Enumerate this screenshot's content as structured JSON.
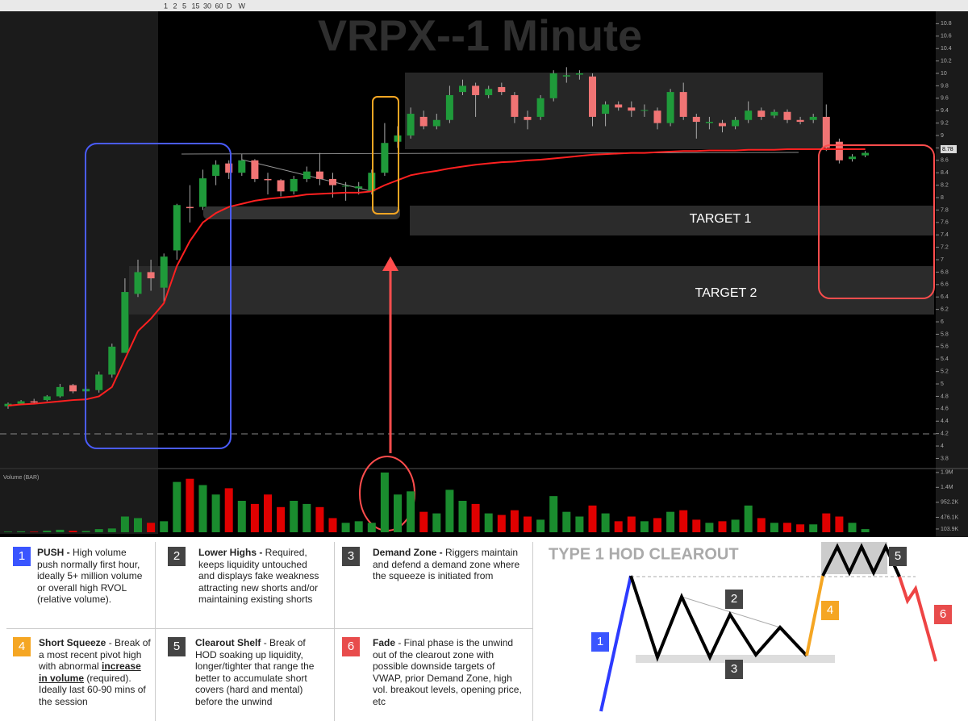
{
  "toolbar": {
    "labels": [
      "1",
      "2",
      "5",
      "15",
      "30",
      "60",
      "D",
      "W"
    ]
  },
  "chart_data": {
    "type": "candlestick",
    "title": "VRPX--1 Minute",
    "categories": [
      null,
      null,
      null,
      null,
      null,
      null,
      null,
      null,
      null,
      null,
      null,
      null,
      null,
      null,
      null,
      null,
      null,
      null,
      null,
      null,
      null,
      null,
      null,
      null,
      null,
      null,
      null,
      null,
      null,
      null,
      null,
      null,
      null,
      null,
      null,
      null,
      null,
      null,
      null,
      null,
      null,
      null,
      null,
      null,
      null,
      null,
      null,
      null,
      null,
      null,
      null,
      null,
      null,
      null,
      null,
      null,
      null,
      null,
      null,
      null,
      null,
      null,
      null,
      null,
      null,
      null,
      null
    ],
    "open": [
      4.64,
      4.68,
      4.72,
      4.74,
      4.8,
      4.98,
      4.88,
      4.9,
      5.15,
      5.5,
      6.45,
      6.8,
      6.55,
      7.15,
      7.85,
      7.85,
      8.35,
      8.55,
      8.4,
      8.6,
      8.3,
      8.28,
      8.1,
      8.3,
      8.42,
      8.3,
      8.18,
      8.15,
      8.1,
      8.4,
      8.9,
      9.0,
      9.3,
      9.15,
      9.25,
      9.7,
      9.8,
      9.65,
      9.78,
      9.65,
      9.3,
      9.3,
      9.6,
      9.95,
      9.98,
      9.95,
      9.35,
      9.5,
      9.45,
      9.4,
      9.4,
      9.2,
      9.7,
      9.3,
      9.2,
      9.2,
      9.15,
      9.25,
      9.4,
      9.32,
      9.38,
      9.25,
      9.25,
      9.3,
      8.9,
      8.62,
      8.68
    ],
    "high": [
      4.7,
      4.74,
      4.76,
      4.82,
      5.0,
      5.0,
      4.96,
      5.2,
      5.65,
      6.7,
      7.0,
      7.0,
      7.1,
      7.9,
      8.2,
      8.45,
      8.6,
      8.6,
      8.7,
      8.62,
      8.4,
      8.3,
      8.35,
      8.5,
      8.72,
      8.4,
      8.25,
      8.25,
      8.45,
      9.2,
      9.15,
      9.45,
      9.4,
      9.35,
      9.8,
      9.9,
      9.85,
      9.8,
      9.85,
      9.7,
      9.4,
      9.65,
      10.05,
      10.1,
      10.05,
      10.0,
      9.55,
      9.55,
      9.55,
      9.5,
      9.45,
      9.75,
      9.85,
      9.35,
      9.3,
      9.25,
      9.3,
      9.55,
      9.45,
      9.42,
      9.42,
      9.3,
      9.35,
      9.5,
      8.95,
      8.7,
      8.75
    ],
    "low": [
      4.6,
      4.66,
      4.68,
      4.72,
      4.78,
      4.85,
      4.85,
      4.86,
      5.1,
      5.5,
      6.4,
      6.5,
      6.3,
      7.0,
      7.6,
      7.8,
      8.2,
      8.3,
      8.35,
      8.25,
      8.05,
      8.02,
      8.05,
      8.25,
      8.2,
      8.0,
      7.95,
      8.05,
      8.05,
      8.35,
      8.8,
      8.95,
      9.1,
      9.1,
      9.2,
      9.65,
      9.3,
      9.6,
      9.65,
      9.2,
      9.1,
      9.25,
      9.55,
      9.85,
      9.9,
      9.15,
      9.15,
      9.4,
      9.3,
      9.3,
      9.1,
      9.15,
      9.25,
      8.95,
      9.1,
      9.05,
      9.1,
      9.2,
      9.25,
      9.28,
      9.2,
      9.18,
      9.2,
      8.75,
      8.55,
      8.58,
      8.65
    ],
    "close": [
      4.68,
      4.72,
      4.7,
      4.8,
      4.95,
      4.88,
      4.92,
      5.15,
      5.6,
      6.48,
      6.8,
      6.7,
      7.05,
      7.88,
      7.83,
      8.31,
      8.53,
      8.4,
      8.6,
      8.3,
      8.28,
      8.1,
      8.3,
      8.42,
      8.3,
      8.2,
      8.19,
      8.18,
      8.4,
      8.88,
      9.0,
      9.35,
      9.15,
      9.25,
      9.65,
      9.8,
      9.65,
      9.75,
      9.7,
      9.3,
      9.25,
      9.6,
      10.0,
      9.97,
      10.0,
      9.3,
      9.5,
      9.45,
      9.4,
      9.41,
      9.2,
      9.7,
      9.3,
      9.22,
      9.22,
      9.15,
      9.25,
      9.4,
      9.3,
      9.38,
      9.25,
      9.22,
      9.3,
      8.8,
      8.6,
      8.66,
      8.72
    ],
    "up_color": "#1f9a3a",
    "down_color": "#f07474",
    "vwap": {
      "color": "#ff2020",
      "values": [
        4.65,
        4.67,
        4.68,
        4.7,
        4.72,
        4.74,
        4.75,
        4.8,
        4.95,
        5.4,
        5.85,
        6.05,
        6.3,
        6.9,
        7.3,
        7.6,
        7.75,
        7.85,
        7.9,
        7.95,
        7.98,
        8.0,
        8.02,
        8.05,
        8.06,
        8.07,
        8.08,
        8.08,
        8.1,
        8.2,
        8.28,
        8.36,
        8.4,
        8.43,
        8.47,
        8.5,
        8.53,
        8.55,
        8.57,
        8.58,
        8.6,
        8.61,
        8.63,
        8.65,
        8.67,
        8.69,
        8.7,
        8.71,
        8.72,
        8.72,
        8.73,
        8.74,
        8.75,
        8.75,
        8.76,
        8.76,
        8.76,
        8.77,
        8.77,
        8.77,
        8.78,
        8.78,
        8.78,
        8.78,
        8.78,
        8.78,
        8.78
      ]
    },
    "last_price": 8.78,
    "ylim": [
      3.65,
      11.0
    ],
    "yticks": [
      3.8,
      4,
      4.2,
      4.4,
      4.6,
      4.8,
      5,
      5.2,
      5.4,
      5.6,
      5.8,
      6,
      6.2,
      6.4,
      6.6,
      6.8,
      7,
      7.2,
      7.4,
      7.6,
      7.8,
      8,
      8.2,
      8.4,
      8.6,
      8.8,
      9,
      9.2,
      9.4,
      9.6,
      9.8,
      10,
      10.2,
      10.4,
      10.6,
      10.8
    ],
    "annotations": [
      "TARGET 1",
      "TARGET 2"
    ],
    "volume": {
      "title": "Volume (BAR)",
      "up_color": "#1a8c2e",
      "down_color": "#e00000",
      "values": [
        20000,
        30000,
        20000,
        50000,
        80000,
        50000,
        40000,
        100000,
        120000,
        500000,
        450000,
        300000,
        350000,
        1600000,
        1700000,
        1500000,
        1200000,
        1400000,
        1000000,
        900000,
        1200000,
        800000,
        1000000,
        900000,
        800000,
        450000,
        300000,
        350000,
        300000,
        1900000,
        1200000,
        1300000,
        650000,
        600000,
        1350000,
        1000000,
        900000,
        600000,
        550000,
        700000,
        500000,
        400000,
        1150000,
        650000,
        500000,
        850000,
        600000,
        350000,
        500000,
        350000,
        450000,
        650000,
        700000,
        400000,
        300000,
        350000,
        400000,
        850000,
        450000,
        300000,
        300000,
        250000,
        250000,
        600000,
        500000,
        300000,
        100000
      ],
      "ylim": [
        0,
        2000000
      ],
      "yticks": [
        {
          "value": 1900000,
          "label": "1.9M"
        },
        {
          "value": 1428300,
          "label": "1.4M"
        },
        {
          "value": 952200,
          "label": "952.2K"
        },
        {
          "value": 476100,
          "label": "476.1K"
        },
        {
          "value": 103900,
          "label": "103.9K"
        }
      ]
    }
  },
  "legend": {
    "items": [
      {
        "number": "1",
        "title": "PUSH - ",
        "text": "High volume push normally first hour, ideally 5+ million volume or overall high RVOL (relative volume)."
      },
      {
        "number": "2",
        "title": "Lower Highs - ",
        "text": " Required, keeps liquidity untouched and displays fake weakness attracting new shorts and/or maintaining existing shorts"
      },
      {
        "number": "3",
        "title": "Demand Zone - ",
        "text": "Riggers maintain and defend a demand zone where the squeeze is initiated from"
      },
      {
        "number": "4",
        "title": "Short Squeeze",
        "text": " - Break of a most recent  pivot high with abnormal ",
        "emphasis": "increase in volume",
        "text_after": " (required). Ideally last 60-90 mins of the session"
      },
      {
        "number": "5",
        "title": "Clearout Shelf",
        "text": " - Break of HOD soaking up liquidity, longer/tighter that range the better to accumulate short covers (hard and mental) before the unwind"
      },
      {
        "number": "6",
        "title": "Fade",
        "text": " - Final phase is the unwind out of the clearout zone with possible downside targets of VWAP, prior Demand Zone, high vol. breakout levels, opening price, etc"
      }
    ]
  },
  "diagram": {
    "title": "TYPE 1 HOD CLEAROUT",
    "badges": [
      "1",
      "2",
      "3",
      "4",
      "5",
      "6"
    ]
  }
}
